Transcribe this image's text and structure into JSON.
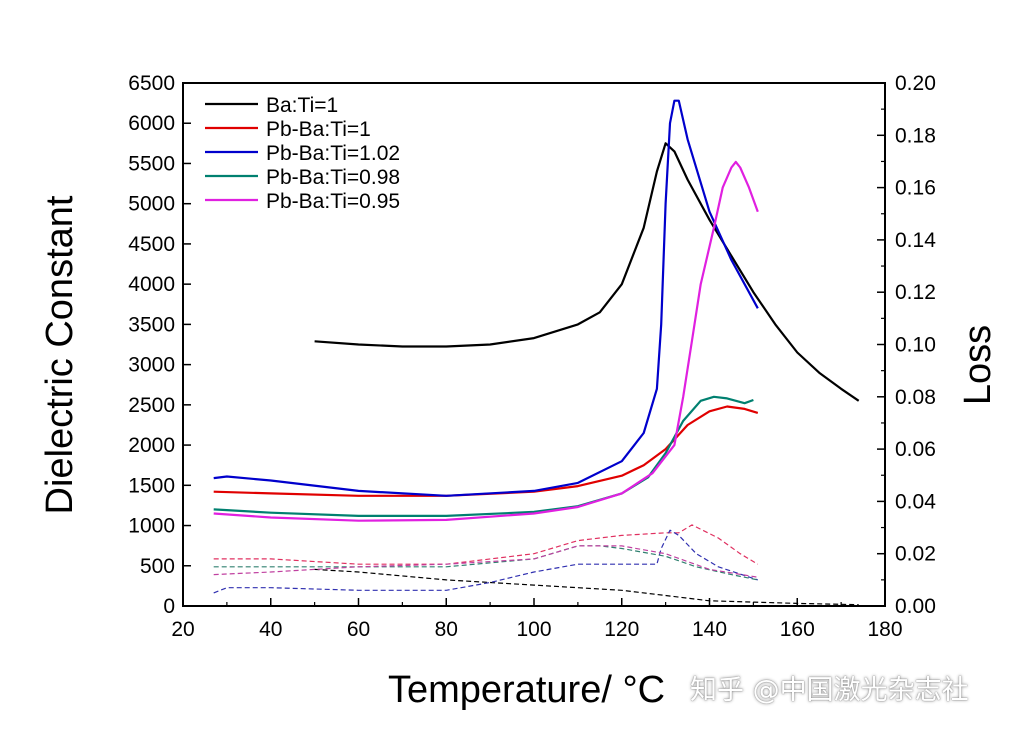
{
  "chart_data": {
    "type": "line",
    "xlabel": "Temperature/ °C",
    "xlabel_main": "Temperature/ ",
    "xlabel_sup": "o",
    "xlabel_unit": "C",
    "ylabel": "Dielectric Constant",
    "y2label": "Loss",
    "xlim": [
      20,
      180
    ],
    "ylim": [
      0,
      6500
    ],
    "y2lim": [
      0,
      0.2
    ],
    "xticks": [
      20,
      40,
      60,
      80,
      100,
      120,
      140,
      160,
      180
    ],
    "yticks": [
      0,
      500,
      1000,
      1500,
      2000,
      2500,
      3000,
      3500,
      4000,
      4500,
      5000,
      5500,
      6000,
      6500
    ],
    "y2ticks": [
      "0.00",
      "0.02",
      "0.04",
      "0.06",
      "0.08",
      "0.10",
      "0.12",
      "0.14",
      "0.16",
      "0.18",
      "0.20"
    ],
    "grid": false,
    "legend_position": "top-left",
    "series": [
      {
        "name": "Ba:Ti=1",
        "color": "#000000",
        "axis": "left",
        "x": [
          50,
          60,
          70,
          80,
          90,
          100,
          110,
          115,
          120,
          125,
          128,
          130,
          132,
          135,
          140,
          145,
          150,
          155,
          160,
          165,
          170,
          174
        ],
        "y": [
          3290,
          3250,
          3225,
          3225,
          3250,
          3330,
          3500,
          3650,
          4000,
          4700,
          5400,
          5750,
          5650,
          5300,
          4800,
          4350,
          3900,
          3500,
          3150,
          2900,
          2700,
          2550
        ]
      },
      {
        "name": "Pb-Ba:Ti=1",
        "color": "#e00000",
        "axis": "left",
        "x": [
          27,
          40,
          60,
          80,
          100,
          110,
          120,
          125,
          130,
          135,
          140,
          144,
          148,
          151
        ],
        "y": [
          1420,
          1400,
          1370,
          1370,
          1420,
          1490,
          1620,
          1750,
          1950,
          2250,
          2420,
          2480,
          2450,
          2400
        ]
      },
      {
        "name": "Pb-Ba:Ti=1.02",
        "color": "#0000cc",
        "axis": "left",
        "x": [
          27,
          30,
          40,
          60,
          80,
          100,
          110,
          120,
          125,
          128,
          129,
          130,
          131,
          132,
          133,
          135,
          140,
          145,
          151
        ],
        "y": [
          1590,
          1610,
          1560,
          1430,
          1370,
          1430,
          1530,
          1800,
          2150,
          2700,
          3500,
          5000,
          6000,
          6280,
          6280,
          5800,
          4900,
          4300,
          3700
        ]
      },
      {
        "name": "Pb-Ba:Ti=0.98",
        "color": "#008070",
        "axis": "left",
        "x": [
          27,
          40,
          60,
          80,
          100,
          110,
          120,
          126,
          130,
          134,
          138,
          141,
          144,
          148,
          150
        ],
        "y": [
          1200,
          1160,
          1120,
          1120,
          1170,
          1240,
          1400,
          1600,
          1900,
          2300,
          2550,
          2600,
          2580,
          2520,
          2560
        ]
      },
      {
        "name": "Pb-Ba:Ti=0.95",
        "color": "#e020e0",
        "axis": "left",
        "x": [
          27,
          40,
          60,
          80,
          100,
          110,
          120,
          127,
          132,
          134,
          136,
          138,
          141,
          143,
          145,
          146,
          147,
          149,
          151
        ],
        "y": [
          1150,
          1100,
          1060,
          1070,
          1150,
          1230,
          1400,
          1650,
          2000,
          2600,
          3300,
          4000,
          4700,
          5200,
          5450,
          5520,
          5450,
          5200,
          4900
        ]
      },
      {
        "name": "Ba:Ti=1 loss",
        "color": "#000000",
        "axis": "right",
        "dashed": true,
        "x": [
          50,
          60,
          80,
          100,
          120,
          130,
          140,
          160,
          174
        ],
        "y": [
          0.014,
          0.013,
          0.01,
          0.008,
          0.006,
          0.004,
          0.002,
          0.001,
          0.0005
        ]
      },
      {
        "name": "Pb-Ba:Ti=1 loss",
        "color": "#e03060",
        "axis": "right",
        "dashed": true,
        "x": [
          27,
          40,
          60,
          80,
          100,
          110,
          120,
          130,
          133,
          136,
          142,
          147,
          151
        ],
        "y": [
          0.018,
          0.018,
          0.016,
          0.016,
          0.02,
          0.025,
          0.027,
          0.028,
          0.028,
          0.031,
          0.026,
          0.02,
          0.016
        ]
      },
      {
        "name": "Pb-Ba:Ti=1.02 loss",
        "color": "#3030b0",
        "axis": "right",
        "dashed": true,
        "x": [
          27,
          30,
          40,
          60,
          80,
          90,
          100,
          110,
          120,
          128,
          129,
          131,
          133,
          137,
          142,
          151
        ],
        "y": [
          0.005,
          0.007,
          0.007,
          0.006,
          0.006,
          0.009,
          0.013,
          0.016,
          0.016,
          0.016,
          0.022,
          0.029,
          0.027,
          0.02,
          0.015,
          0.01
        ]
      },
      {
        "name": "Pb-Ba:Ti=0.98 loss",
        "color": "#308070",
        "axis": "right",
        "dashed": true,
        "x": [
          27,
          40,
          60,
          80,
          100,
          110,
          115,
          120,
          130,
          137,
          145,
          151
        ],
        "y": [
          0.015,
          0.015,
          0.015,
          0.015,
          0.018,
          0.023,
          0.023,
          0.022,
          0.019,
          0.015,
          0.012,
          0.01
        ]
      },
      {
        "name": "Pb-Ba:Ti=0.95 loss",
        "color": "#c040a0",
        "axis": "right",
        "dashed": true,
        "x": [
          27,
          40,
          50,
          60,
          80,
          100,
          110,
          120,
          130,
          140,
          151
        ],
        "y": [
          0.012,
          0.013,
          0.014,
          0.015,
          0.016,
          0.018,
          0.023,
          0.023,
          0.02,
          0.014,
          0.011
        ]
      }
    ]
  },
  "watermark": "知乎 @中国激光杂志社"
}
